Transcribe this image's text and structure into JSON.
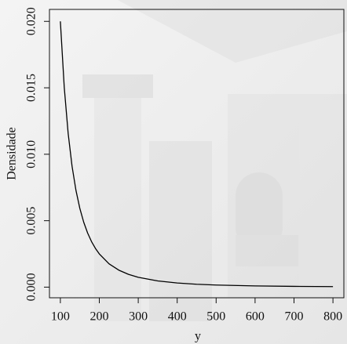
{
  "chart_data": {
    "type": "line",
    "x_label": "y",
    "y_label": "Densidade",
    "x": [
      100,
      110,
      120,
      130,
      140,
      150,
      160,
      170,
      180,
      190,
      200,
      225,
      250,
      275,
      300,
      350,
      400,
      450,
      500,
      600,
      700,
      800
    ],
    "series": [
      {
        "color": "#000000",
        "values": [
          0.02,
          0.015026,
          0.011574,
          0.009103,
          0.007289,
          0.005926,
          0.004883,
          0.004071,
          0.003429,
          0.002916,
          0.0025,
          0.001756,
          0.00128,
          0.000962,
          0.000741,
          0.000466,
          0.000313,
          0.000219,
          0.00016,
          9.26e-05,
          5.83e-05,
          3.91e-05
        ]
      }
    ],
    "xlim": [
      72,
      828
    ],
    "ylim": [
      -0.0008,
      0.0209
    ],
    "xticks": [
      100,
      200,
      300,
      400,
      500,
      600,
      700,
      800
    ],
    "yticks": [
      {
        "value": 0,
        "label": "0.000"
      },
      {
        "value": 0.005,
        "label": "0.005"
      },
      {
        "value": 0.01,
        "label": "0.010"
      },
      {
        "value": 0.015,
        "label": "0.015"
      },
      {
        "value": 0.02,
        "label": "0.020"
      }
    ]
  }
}
